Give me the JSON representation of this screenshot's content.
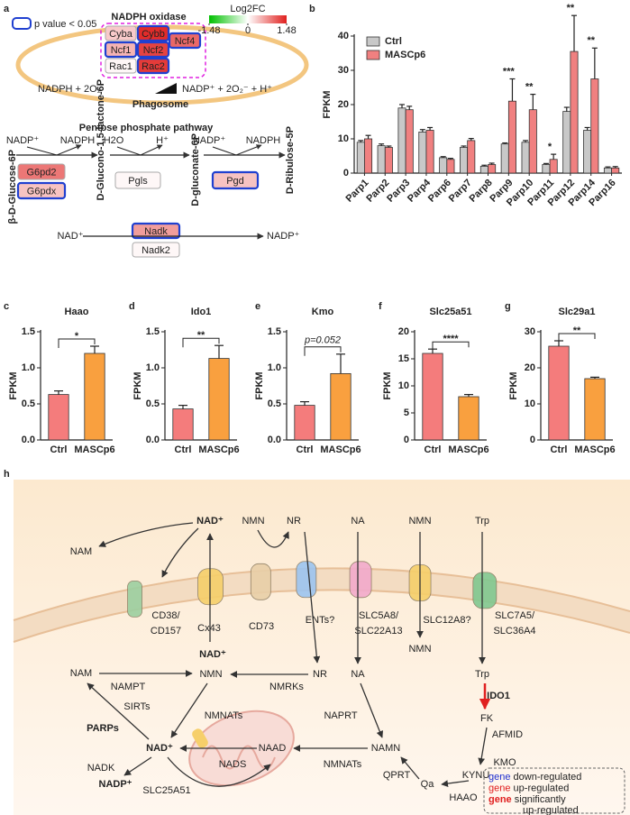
{
  "panel_a": {
    "panel_label": "a",
    "legend_text": "p value < 0.05",
    "complex_title": "NADPH oxidase",
    "scale_title": "Log2FC",
    "scale_lim": [
      -1.48,
      1.48
    ],
    "scale_ticks": [
      -1.48,
      0,
      1.48
    ],
    "genes": [
      {
        "name": "Cyba",
        "log2fc": 0.35,
        "significant": false
      },
      {
        "name": "Cybb",
        "log2fc": 1.4,
        "significant": true
      },
      {
        "name": "Ncf4",
        "log2fc": 1.0,
        "significant": true
      },
      {
        "name": "Ncf1",
        "log2fc": 0.5,
        "significant": true
      },
      {
        "name": "Ncf2",
        "log2fc": 1.25,
        "significant": true
      },
      {
        "name": "Rac1",
        "log2fc": 0.05,
        "significant": false
      },
      {
        "name": "Rac2",
        "log2fc": 1.3,
        "significant": true
      },
      {
        "name": "G6pd2",
        "log2fc": 0.9,
        "significant": false
      },
      {
        "name": "G6pdx",
        "log2fc": 0.4,
        "significant": true
      },
      {
        "name": "Pgls",
        "log2fc": 0.05,
        "significant": false
      },
      {
        "name": "Pgd",
        "log2fc": 0.4,
        "significant": true
      },
      {
        "name": "Nadk",
        "log2fc": 0.65,
        "significant": true
      },
      {
        "name": "Nadk2",
        "log2fc": 0.05,
        "significant": false
      }
    ],
    "reaction_left": "NADPH + 2O₂",
    "reaction_right": "NADP⁺ + 2O₂⁻ + H⁺",
    "compartment": "Phagosome",
    "pathway_title": "Pentose phosphate pathway",
    "metabolites": [
      "β-D-Glucose-6P",
      "D-Glucono-1,5-lactone-6P",
      "D-gluconate-6P",
      "D-Ribulose-5P"
    ],
    "cofactors": [
      "NADP⁺",
      "NADPH",
      "H2O",
      "H⁺",
      "NADP⁺",
      "NADPH"
    ],
    "nad": "NAD⁺",
    "nadp": "NADP⁺"
  },
  "chart_data": [
    {
      "type": "grouped_bar",
      "panel_label": "b",
      "ylabel": "FPKM",
      "categories": [
        "Parp1",
        "Parp2",
        "Parp3",
        "Parp4",
        "Parp6",
        "Parp7",
        "Parp8",
        "Parp9",
        "Parp10",
        "Parp11",
        "Parp12",
        "Parp14",
        "Parp16"
      ],
      "series": [
        {
          "name": "Ctrl",
          "color": "#c8c8c8",
          "values": [
            9,
            8,
            19,
            12,
            4.5,
            7.5,
            2,
            8.5,
            9,
            2.5,
            18,
            12.5,
            1.5
          ],
          "errors": [
            0.5,
            0.5,
            1,
            0.7,
            0.3,
            0.4,
            0.3,
            0.3,
            0.5,
            0.3,
            1.2,
            0.8,
            0.3
          ]
        },
        {
          "name": "MASCp6",
          "color": "#f08080",
          "values": [
            10,
            7.5,
            18.5,
            12.5,
            4,
            9.5,
            2.5,
            21,
            18.5,
            4,
            35.5,
            27.5,
            1.5
          ],
          "errors": [
            1,
            0.4,
            1,
            0.8,
            0.3,
            0.6,
            0.4,
            6.5,
            4.5,
            1.5,
            10.5,
            9,
            0.4
          ]
        }
      ],
      "annotations": [
        null,
        null,
        null,
        null,
        null,
        null,
        null,
        "***",
        "**",
        "*",
        "**",
        "**",
        null
      ],
      "ylim": [
        0,
        40
      ],
      "yticks": [
        0,
        10,
        20,
        30,
        40
      ],
      "legend": "top-left"
    },
    {
      "type": "bar",
      "panel_label": "c",
      "title": "Haao",
      "ylabel": "FPKM",
      "categories": [
        "Ctrl",
        "MASCp6"
      ],
      "values": [
        0.63,
        1.2
      ],
      "errors": [
        0.05,
        0.1
      ],
      "colors": [
        "#f47c7c",
        "#f9a03f"
      ],
      "annotation": "*",
      "ylim": [
        0,
        1.5
      ],
      "yticks": [
        {
          "value": 0,
          "label": "0.0"
        },
        0.5,
        {
          "value": 1,
          "label": "1.0"
        },
        1.5
      ]
    },
    {
      "type": "bar",
      "panel_label": "d",
      "title": "Ido1",
      "ylabel": "FPKM",
      "categories": [
        "Ctrl",
        "MASCp6"
      ],
      "values": [
        0.43,
        1.13
      ],
      "errors": [
        0.05,
        0.18
      ],
      "colors": [
        "#f47c7c",
        "#f9a03f"
      ],
      "annotation": "**",
      "ylim": [
        0,
        1.5
      ],
      "yticks": [
        {
          "value": 0,
          "label": "0.0"
        },
        0.5,
        {
          "value": 1,
          "label": "1.0"
        },
        1.5
      ]
    },
    {
      "type": "bar",
      "panel_label": "e",
      "title": "Kmo",
      "ylabel": "FPKM",
      "categories": [
        "Ctrl",
        "MASCp6"
      ],
      "values": [
        0.48,
        0.92
      ],
      "errors": [
        0.05,
        0.27
      ],
      "colors": [
        "#f47c7c",
        "#f9a03f"
      ],
      "annotation": "p=0.052",
      "ylim": [
        0,
        1.5
      ],
      "yticks": [
        {
          "value": 0,
          "label": "0.0"
        },
        0.5,
        {
          "value": 1,
          "label": "1.0"
        },
        1.5
      ]
    },
    {
      "type": "bar",
      "panel_label": "f",
      "title": "Slc25a51",
      "ylabel": "FPKM",
      "categories": [
        "Ctrl",
        "MASCp6"
      ],
      "values": [
        16,
        8
      ],
      "errors": [
        0.8,
        0.4
      ],
      "colors": [
        "#f47c7c",
        "#f9a03f"
      ],
      "annotation": "****",
      "ylim": [
        0,
        20
      ],
      "yticks": [
        0,
        5,
        10,
        15,
        20
      ]
    },
    {
      "type": "bar",
      "panel_label": "g",
      "title": "Slc29a1",
      "ylabel": "FPKM",
      "categories": [
        "Ctrl",
        "MASCp6"
      ],
      "values": [
        26,
        17
      ],
      "errors": [
        1.5,
        0.4
      ],
      "colors": [
        "#f47c7c",
        "#f9a03f"
      ],
      "annotation": "**",
      "ylim": [
        0,
        30
      ],
      "yticks": [
        0,
        10,
        20,
        30
      ]
    }
  ],
  "panel_h": {
    "panel_label": "h",
    "labels": [
      "NAD⁺",
      "NMN",
      "NR",
      "NA",
      "NMN",
      "Trp",
      "NAM",
      "CD38/",
      "CD157",
      "Cx43",
      "CD73",
      "ENTs?",
      "SLC5A8/",
      "SLC22A13",
      "SLC12A8?",
      "SLC7A5/",
      "SLC36A4",
      "NMN",
      "NAD⁺",
      "NAM",
      "NMN",
      "NR",
      "NA",
      "Trp",
      "NAMPT",
      "NMRKs",
      "IDO1",
      "SIRTs",
      "NMNATs",
      "NAPRT",
      "FK",
      "PARPs",
      "AFMID",
      "NAD⁺",
      "NAAD",
      "NAMN",
      "NADS",
      "NMNATs",
      "KMO",
      "NADK",
      "KYNU",
      "QPRT",
      "Qa",
      "NADP⁺",
      "SLC25A51",
      "HAAO"
    ],
    "legend": [
      {
        "word": "gene",
        "text": "down-regulated"
      },
      {
        "word": "gene",
        "text": "up-regulated"
      },
      {
        "word": "gene",
        "text": "significantly",
        "text2": "up-regulated"
      }
    ]
  }
}
